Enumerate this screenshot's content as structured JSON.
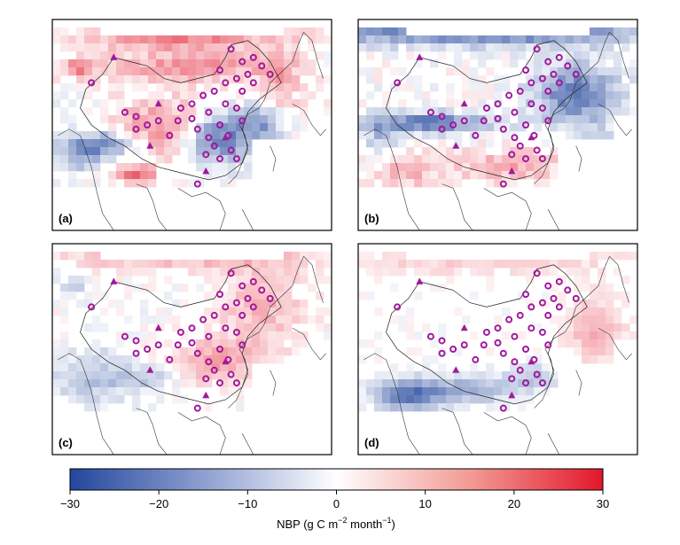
{
  "panels": [
    {
      "label": "(a)",
      "pattern": "a"
    },
    {
      "label": "(b)",
      "pattern": "b"
    },
    {
      "label": "(c)",
      "pattern": "c"
    },
    {
      "label": "(d)",
      "pattern": "d"
    }
  ],
  "colorbar": {
    "min": -30,
    "max": 30,
    "ticks": [
      "−30",
      "−20",
      "−10",
      "0",
      "10",
      "20",
      "30"
    ],
    "title_main": "NBP (g C m",
    "title_exp1": "−2",
    "title_mid": " month",
    "title_exp2": "−1",
    "title_end": ")",
    "colors": {
      "neg": "#2b4fa3",
      "zero": "#ffffff",
      "pos": "#e0192d"
    }
  },
  "markers": {
    "circle_color": "#a0199b",
    "triangle_color": "#a0199b"
  }
}
